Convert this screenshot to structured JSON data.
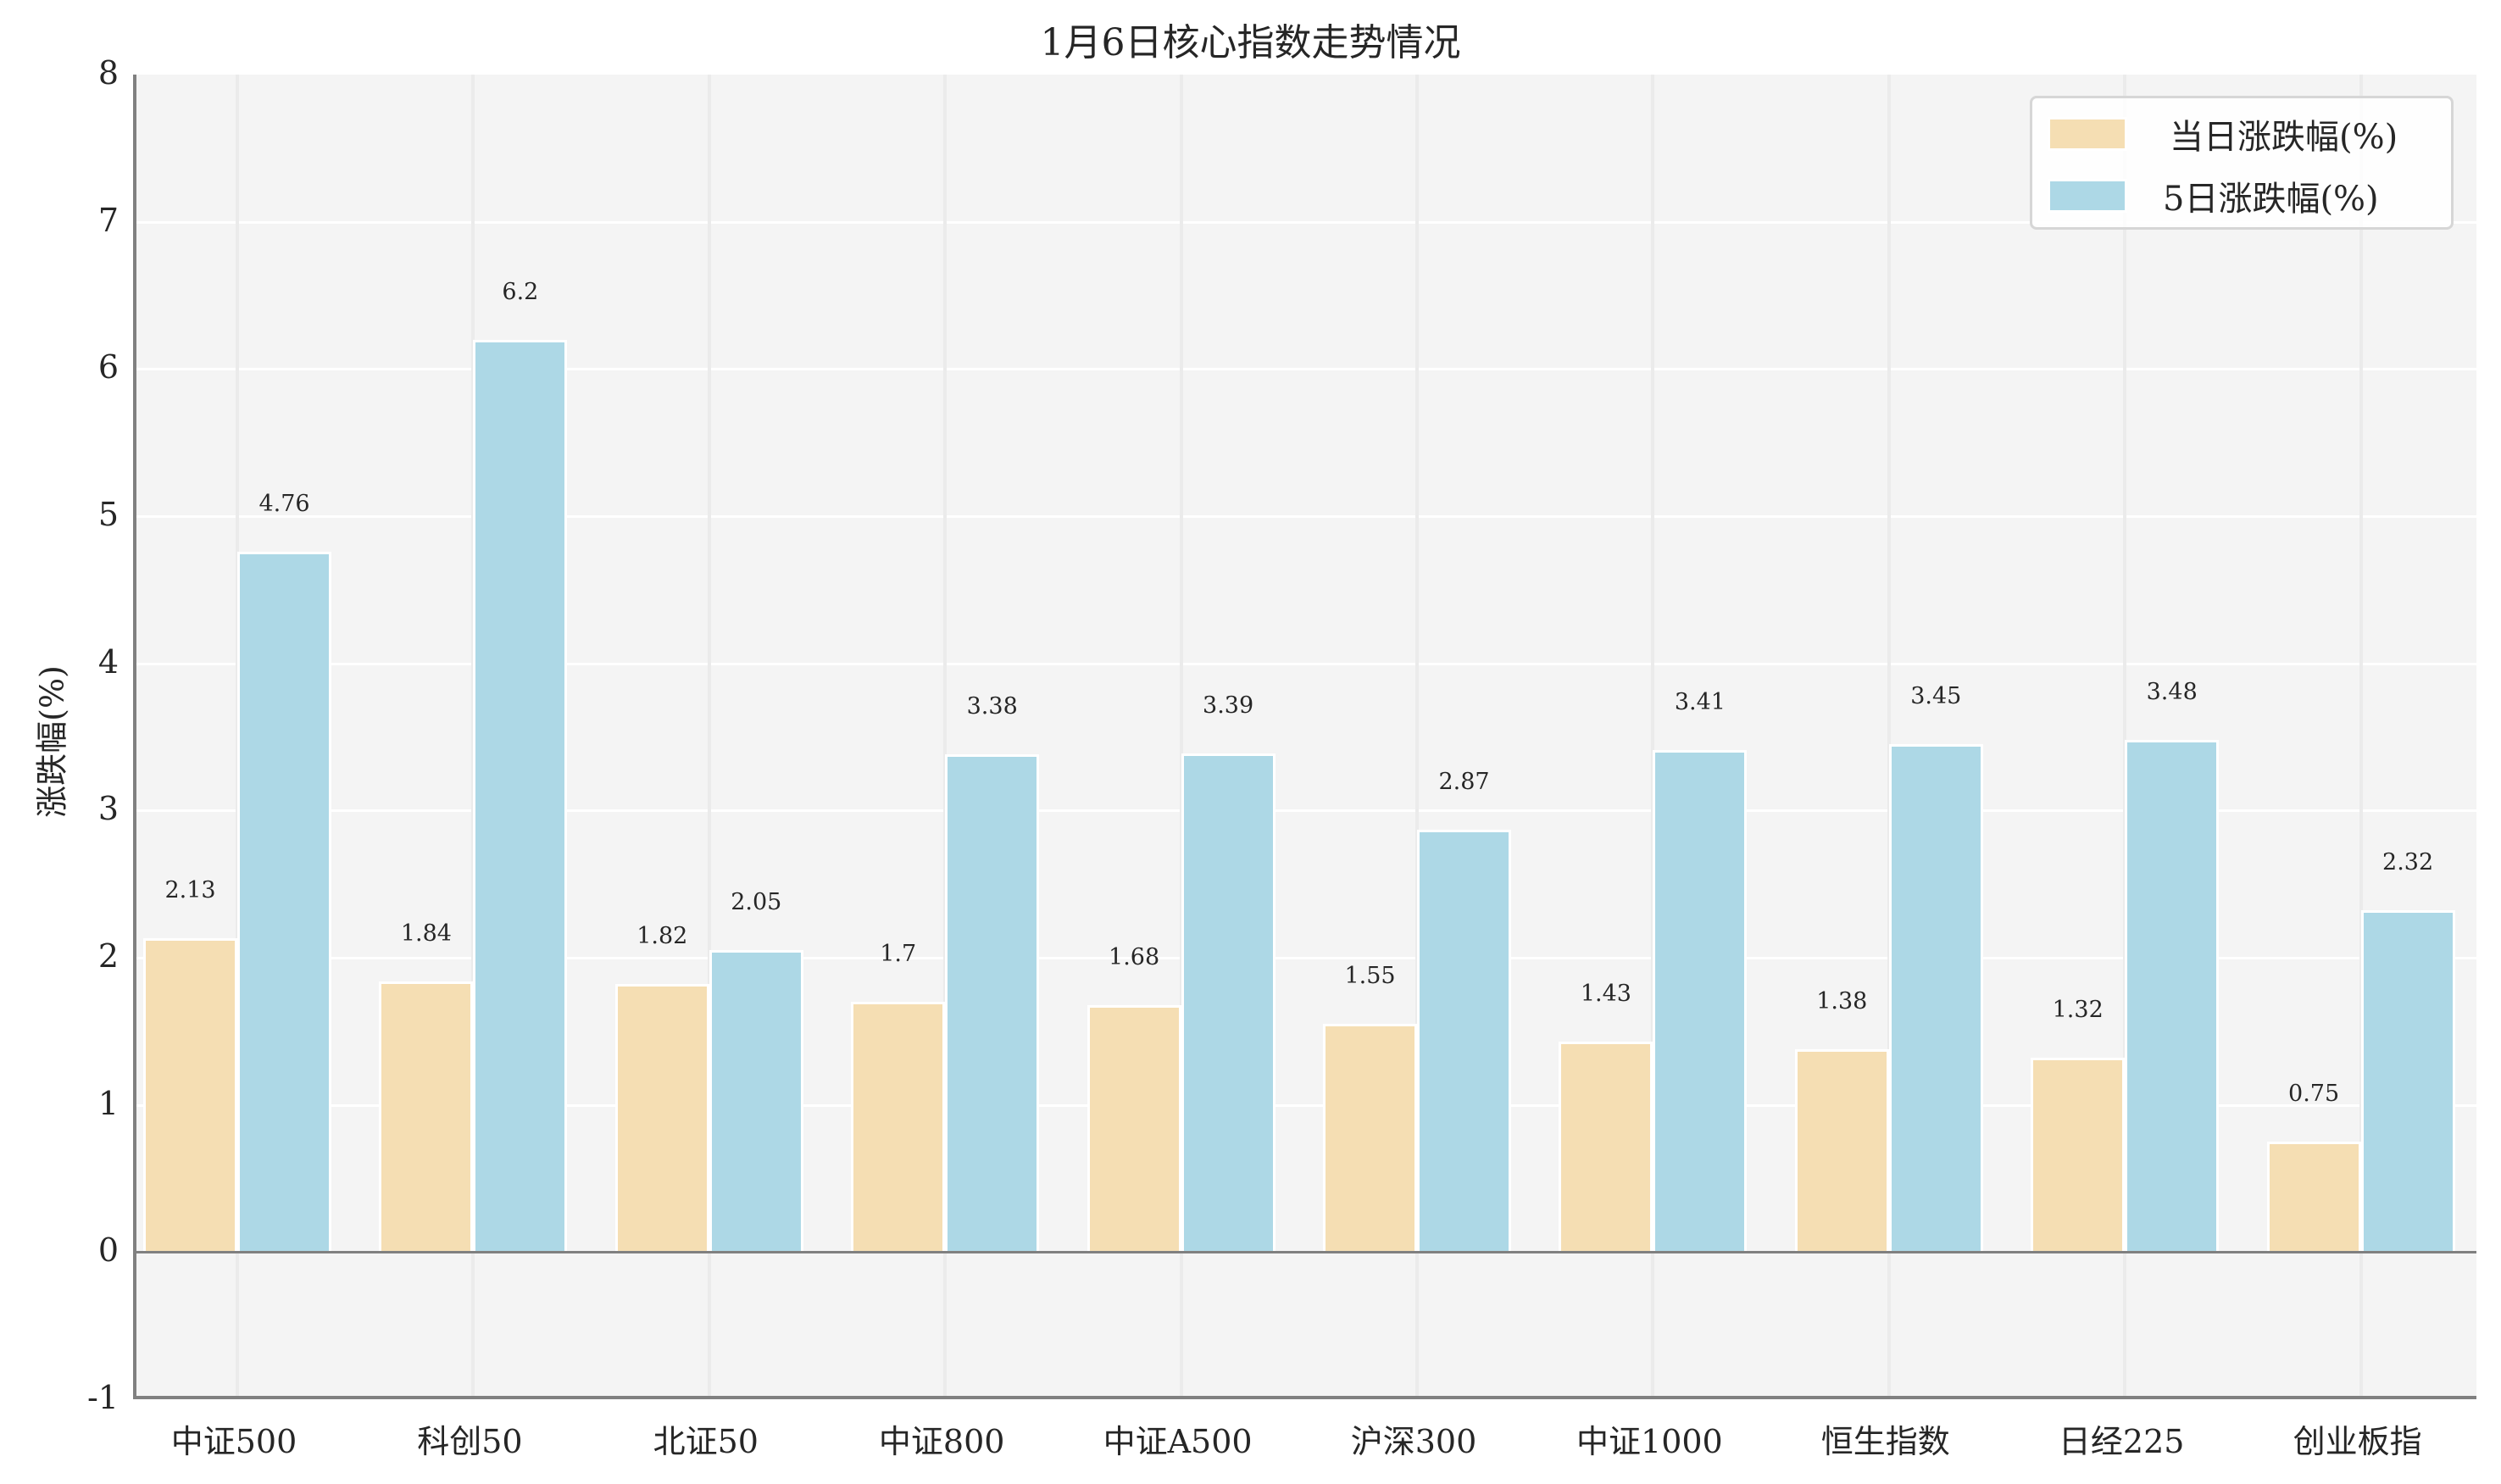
{
  "chart_data": {
    "type": "bar",
    "title": "1月6日核心指数走势情况",
    "xlabel": "",
    "ylabel": "涨跌幅(%)",
    "ylim": [
      -1,
      8
    ],
    "yticks": [
      "8",
      "7",
      "6",
      "5",
      "4",
      "3",
      "2",
      "1",
      "0",
      "-1"
    ],
    "grid": true,
    "legend_position": "upper right",
    "categories": [
      "中证500",
      "科创50",
      "北证50",
      "中证800",
      "中证A500",
      "沪深300",
      "中证1000",
      "恒生指数",
      "日经225",
      "创业板指"
    ],
    "series": [
      {
        "name": "当日涨跌幅(%)",
        "color": "#f5deb3",
        "values": [
          2.13,
          1.84,
          1.82,
          1.7,
          1.68,
          1.55,
          1.43,
          1.38,
          1.32,
          0.75
        ],
        "labels": [
          "2.13",
          "1.84",
          "1.82",
          "1.7",
          "1.68",
          "1.55",
          "1.43",
          "1.38",
          "1.32",
          "0.75"
        ]
      },
      {
        "name": "5日涨跌幅(%)",
        "color": "#add8e6",
        "values": [
          4.76,
          6.2,
          2.05,
          3.38,
          3.39,
          2.87,
          3.41,
          3.45,
          3.48,
          2.32
        ],
        "labels": [
          "4.76",
          "6.2",
          "2.05",
          "3.38",
          "3.39",
          "2.87",
          "3.41",
          "3.45",
          "3.48",
          "2.32"
        ]
      }
    ]
  },
  "legend": {
    "items": [
      {
        "label": "当日涨跌幅(%)",
        "color": "#f5deb3"
      },
      {
        "label": "5日涨跌幅(%)",
        "color": "#add8e6"
      }
    ]
  }
}
